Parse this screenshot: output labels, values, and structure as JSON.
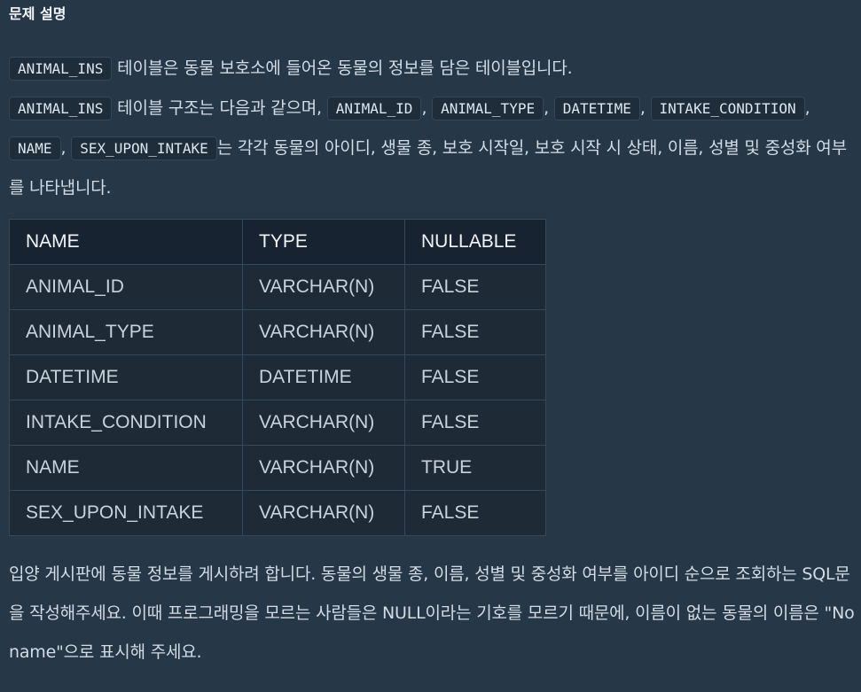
{
  "section_title": "문제 설명",
  "paragraph1": {
    "table_name_1": "ANIMAL_INS",
    "text_1": " 테이블은 동물 보호소에 들어온 동물의 정보를 담은 테이블입니다.",
    "table_name_2": "ANIMAL_INS",
    "text_2": " 테이블 구조는 다음과 같으며, ",
    "col_1": "ANIMAL_ID",
    "col_2": "ANIMAL_TYPE",
    "col_3": "DATETIME",
    "col_4": "INTAKE_CONDITION",
    "col_5": "NAME",
    "col_6": "SEX_UPON_INTAKE",
    "sep": ", ",
    "text_3": "는 각각 동물의 아이디, 생물 종, 보호 시작일, 보호 시작 시 상태, 이름, 성별 및 중성화 여부를 나타냅니다."
  },
  "table": {
    "headers": [
      "NAME",
      "TYPE",
      "NULLABLE"
    ],
    "rows": [
      [
        "ANIMAL_ID",
        "VARCHAR(N)",
        "FALSE"
      ],
      [
        "ANIMAL_TYPE",
        "VARCHAR(N)",
        "FALSE"
      ],
      [
        "DATETIME",
        "DATETIME",
        "FALSE"
      ],
      [
        "INTAKE_CONDITION",
        "VARCHAR(N)",
        "FALSE"
      ],
      [
        "NAME",
        "VARCHAR(N)",
        "TRUE"
      ],
      [
        "SEX_UPON_INTAKE",
        "VARCHAR(N)",
        "FALSE"
      ]
    ]
  },
  "paragraph2": "입양 게시판에 동물 정보를 게시하려 합니다. 동물의 생물 종, 이름, 성별 및 중성화 여부를 아이디 순으로 조회하는 SQL문을 작성해주세요. 이때 프로그래밍을 모르는 사람들은 NULL이라는 기호를 모르기 때문에, 이름이 없는 동물의 이름은 \"No name\"으로 표시해 주세요."
}
